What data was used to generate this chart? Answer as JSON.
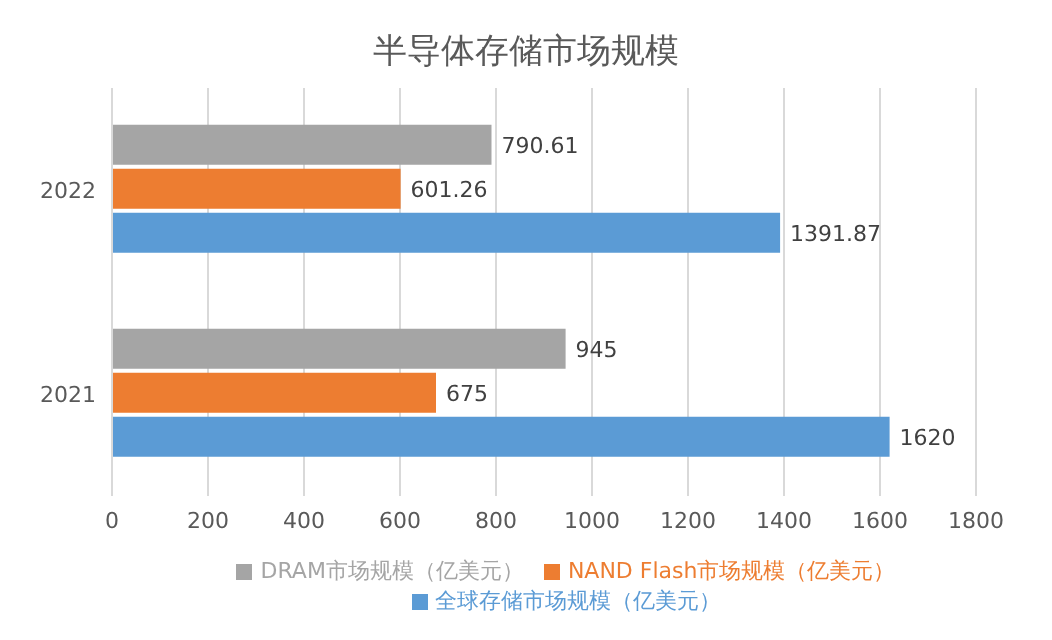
{
  "chart_data": {
    "type": "bar",
    "orientation": "horizontal",
    "title": "半导体存储市场规模",
    "categories": [
      "2022",
      "2021"
    ],
    "series": [
      {
        "name": "DRAM市场规模（亿美元）",
        "color": "#a5a5a5",
        "values": [
          790.61,
          945
        ]
      },
      {
        "name": "NAND Flash市场规模（亿美元）",
        "color": "#ed7d31",
        "values": [
          601.26,
          675
        ]
      },
      {
        "name": "全球存储市场规模（亿美元）",
        "color": "#5b9bd5",
        "values": [
          1391.87,
          1620
        ]
      }
    ],
    "xlim": [
      0,
      1800
    ],
    "xticks": [
      0,
      200,
      400,
      600,
      800,
      1000,
      1200,
      1400,
      1600,
      1800
    ],
    "grid": "x",
    "legend": "bottom",
    "data_labels": true
  }
}
